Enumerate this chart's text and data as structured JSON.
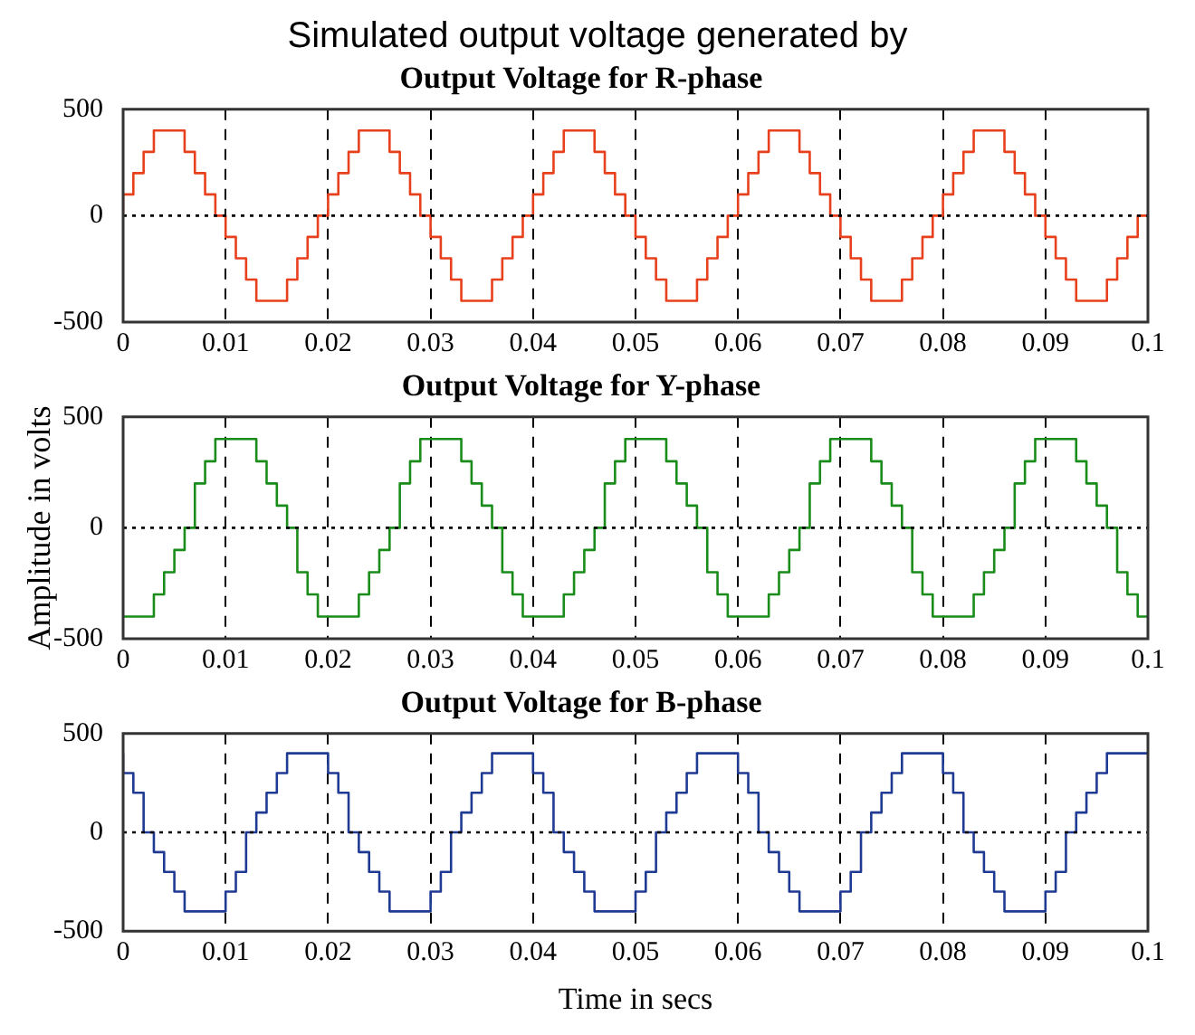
{
  "chart_data": [
    {
      "type": "step",
      "title": "Output Voltage for R-phase",
      "annotations": [
        "Simulated output voltage generated by"
      ],
      "xlim": [
        0,
        0.1
      ],
      "xticks": [
        0,
        0.01,
        0.02,
        0.03,
        0.04,
        0.05,
        0.06,
        0.07,
        0.08,
        0.09,
        0.1
      ],
      "ylim": [
        -500,
        500
      ],
      "yticks": [
        -500,
        0,
        500
      ],
      "grid": "x",
      "legend": false,
      "marker": "none",
      "line_style": "solid",
      "ref_lines": [
        {
          "axis": "y",
          "value": 0,
          "line_style": "dotted",
          "color": "#000000"
        }
      ],
      "x": [
        0,
        0.001,
        0.002,
        0.003,
        0.004,
        0.005,
        0.006,
        0.007,
        0.008,
        0.009,
        0.01,
        0.011,
        0.012,
        0.013,
        0.014,
        0.015,
        0.016,
        0.017,
        0.018,
        0.019,
        0.02,
        0.021,
        0.022,
        0.023,
        0.024,
        0.025,
        0.026,
        0.027,
        0.028,
        0.029,
        0.03,
        0.031,
        0.032,
        0.033,
        0.034,
        0.035,
        0.036,
        0.037,
        0.038,
        0.039,
        0.04,
        0.041,
        0.042,
        0.043,
        0.044,
        0.045,
        0.046,
        0.047,
        0.048,
        0.049,
        0.05,
        0.051,
        0.052,
        0.053,
        0.054,
        0.055,
        0.056,
        0.057,
        0.058,
        0.059,
        0.06,
        0.061,
        0.062,
        0.063,
        0.064,
        0.065,
        0.066,
        0.067,
        0.068,
        0.069,
        0.07,
        0.071,
        0.072,
        0.073,
        0.074,
        0.075,
        0.076,
        0.077,
        0.078,
        0.079,
        0.08,
        0.081,
        0.082,
        0.083,
        0.084,
        0.085,
        0.086,
        0.087,
        0.088,
        0.089,
        0.09,
        0.091,
        0.092,
        0.093,
        0.094,
        0.095,
        0.096,
        0.097,
        0.098,
        0.099,
        0.1
      ],
      "series": [
        {
          "color": "#e8401c",
          "values": [
            0,
            100,
            200,
            300,
            400,
            400,
            400,
            300,
            200,
            100,
            0,
            -100,
            -200,
            -300,
            -400,
            -400,
            -400,
            -300,
            -200,
            -100,
            0,
            100,
            200,
            300,
            400,
            400,
            400,
            300,
            200,
            100,
            0,
            -100,
            -200,
            -300,
            -400,
            -400,
            -400,
            -300,
            -200,
            -100,
            0,
            100,
            200,
            300,
            400,
            400,
            400,
            300,
            200,
            100,
            0,
            -100,
            -200,
            -300,
            -400,
            -400,
            -400,
            -300,
            -200,
            -100,
            0,
            100,
            200,
            300,
            400,
            400,
            400,
            300,
            200,
            100,
            0,
            -100,
            -200,
            -300,
            -400,
            -400,
            -400,
            -300,
            -200,
            -100,
            0,
            100,
            200,
            300,
            400,
            400,
            400,
            300,
            200,
            100,
            0,
            -100,
            -200,
            -300,
            -400,
            -400,
            -400,
            -300,
            -200,
            -100,
            0
          ]
        }
      ]
    },
    {
      "type": "step",
      "title": "Output Voltage for Y-phase",
      "ylabel": "Amplitude in volts",
      "xlim": [
        0,
        0.1
      ],
      "xticks": [
        0,
        0.01,
        0.02,
        0.03,
        0.04,
        0.05,
        0.06,
        0.07,
        0.08,
        0.09,
        0.1
      ],
      "ylim": [
        -500,
        500
      ],
      "yticks": [
        -500,
        0,
        500
      ],
      "grid": "x",
      "legend": false,
      "marker": "none",
      "line_style": "solid",
      "ref_lines": [
        {
          "axis": "y",
          "value": 0,
          "line_style": "dotted",
          "color": "#000000"
        }
      ],
      "x": [
        0,
        0.001,
        0.002,
        0.003,
        0.004,
        0.005,
        0.006,
        0.007,
        0.008,
        0.009,
        0.01,
        0.011,
        0.012,
        0.013,
        0.014,
        0.015,
        0.016,
        0.017,
        0.018,
        0.019,
        0.02,
        0.021,
        0.022,
        0.023,
        0.024,
        0.025,
        0.026,
        0.027,
        0.028,
        0.029,
        0.03,
        0.031,
        0.032,
        0.033,
        0.034,
        0.035,
        0.036,
        0.037,
        0.038,
        0.039,
        0.04,
        0.041,
        0.042,
        0.043,
        0.044,
        0.045,
        0.046,
        0.047,
        0.048,
        0.049,
        0.05,
        0.051,
        0.052,
        0.053,
        0.054,
        0.055,
        0.056,
        0.057,
        0.058,
        0.059,
        0.06,
        0.061,
        0.062,
        0.063,
        0.064,
        0.065,
        0.066,
        0.067,
        0.068,
        0.069,
        0.07,
        0.071,
        0.072,
        0.073,
        0.074,
        0.075,
        0.076,
        0.077,
        0.078,
        0.079,
        0.08,
        0.081,
        0.082,
        0.083,
        0.084,
        0.085,
        0.086,
        0.087,
        0.088,
        0.089,
        0.09,
        0.091,
        0.092,
        0.093,
        0.094,
        0.095,
        0.096,
        0.097,
        0.098,
        0.099,
        0.1
      ],
      "series": [
        {
          "color": "#1a8c1a",
          "values": [
            -400,
            -400,
            -400,
            -400,
            -300,
            -200,
            -100,
            0,
            200,
            300,
            400,
            400,
            400,
            400,
            300,
            200,
            100,
            0,
            -200,
            -300,
            -400,
            -400,
            -400,
            -400,
            -300,
            -200,
            -100,
            0,
            200,
            300,
            400,
            400,
            400,
            400,
            300,
            200,
            100,
            0,
            -200,
            -300,
            -400,
            -400,
            -400,
            -400,
            -300,
            -200,
            -100,
            0,
            200,
            300,
            400,
            400,
            400,
            400,
            300,
            200,
            100,
            0,
            -200,
            -300,
            -400,
            -400,
            -400,
            -400,
            -300,
            -200,
            -100,
            0,
            200,
            300,
            400,
            400,
            400,
            400,
            300,
            200,
            100,
            0,
            -200,
            -300,
            -400,
            -400,
            -400,
            -400,
            -300,
            -200,
            -100,
            0,
            200,
            300,
            400,
            400,
            400,
            400,
            300,
            200,
            100,
            0,
            -200,
            -300,
            -400
          ]
        }
      ]
    },
    {
      "type": "step",
      "title": "Output Voltage for B-phase",
      "xlabel": "Time in secs",
      "xlim": [
        0,
        0.1
      ],
      "xticks": [
        0,
        0.01,
        0.02,
        0.03,
        0.04,
        0.05,
        0.06,
        0.07,
        0.08,
        0.09,
        0.1
      ],
      "ylim": [
        -500,
        500
      ],
      "yticks": [
        -500,
        0,
        500
      ],
      "grid": "x",
      "legend": false,
      "marker": "none",
      "line_style": "solid",
      "ref_lines": [
        {
          "axis": "y",
          "value": 0,
          "line_style": "dotted",
          "color": "#000000"
        }
      ],
      "x": [
        0,
        0.001,
        0.002,
        0.003,
        0.004,
        0.005,
        0.006,
        0.007,
        0.008,
        0.009,
        0.01,
        0.011,
        0.012,
        0.013,
        0.014,
        0.015,
        0.016,
        0.017,
        0.018,
        0.019,
        0.02,
        0.021,
        0.022,
        0.023,
        0.024,
        0.025,
        0.026,
        0.027,
        0.028,
        0.029,
        0.03,
        0.031,
        0.032,
        0.033,
        0.034,
        0.035,
        0.036,
        0.037,
        0.038,
        0.039,
        0.04,
        0.041,
        0.042,
        0.043,
        0.044,
        0.045,
        0.046,
        0.047,
        0.048,
        0.049,
        0.05,
        0.051,
        0.052,
        0.053,
        0.054,
        0.055,
        0.056,
        0.057,
        0.058,
        0.059,
        0.06,
        0.061,
        0.062,
        0.063,
        0.064,
        0.065,
        0.066,
        0.067,
        0.068,
        0.069,
        0.07,
        0.071,
        0.072,
        0.073,
        0.074,
        0.075,
        0.076,
        0.077,
        0.078,
        0.079,
        0.08,
        0.081,
        0.082,
        0.083,
        0.084,
        0.085,
        0.086,
        0.087,
        0.088,
        0.089,
        0.09,
        0.091,
        0.092,
        0.093,
        0.094,
        0.095,
        0.096,
        0.097,
        0.098,
        0.099,
        0.1
      ],
      "series": [
        {
          "color": "#1f3a93",
          "values": [
            400,
            300,
            200,
            0,
            -100,
            -200,
            -300,
            -400,
            -400,
            -400,
            -400,
            -300,
            -200,
            0,
            100,
            200,
            300,
            400,
            400,
            400,
            400,
            300,
            200,
            0,
            -100,
            -200,
            -300,
            -400,
            -400,
            -400,
            -400,
            -300,
            -200,
            0,
            100,
            200,
            300,
            400,
            400,
            400,
            400,
            300,
            200,
            0,
            -100,
            -200,
            -300,
            -400,
            -400,
            -400,
            -400,
            -300,
            -200,
            0,
            100,
            200,
            300,
            400,
            400,
            400,
            400,
            300,
            200,
            0,
            -100,
            -200,
            -300,
            -400,
            -400,
            -400,
            -400,
            -300,
            -200,
            0,
            100,
            200,
            300,
            400,
            400,
            400,
            400,
            300,
            200,
            0,
            -100,
            -200,
            -300,
            -400,
            -400,
            -400,
            -400,
            -300,
            -200,
            0,
            100,
            200,
            300,
            400,
            400,
            400,
            400
          ]
        }
      ]
    }
  ]
}
